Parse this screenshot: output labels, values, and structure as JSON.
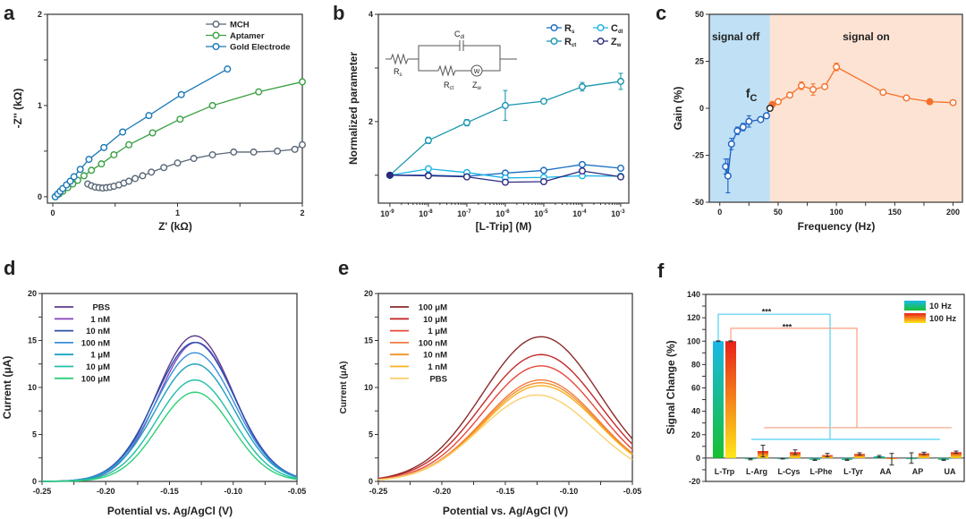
{
  "panels": {
    "a": "a",
    "b": "b",
    "c": "c",
    "d": "d",
    "e": "e",
    "f": "f"
  },
  "chart_data": [
    {
      "id": "a",
      "type": "scatter",
      "xlabel": "Z' (kΩ)",
      "ylabel": "-Z'' (kΩ)",
      "xlim": [
        -0.043,
        2
      ],
      "ylim": [
        -0.07,
        2
      ],
      "x_ticks": [
        0,
        1,
        2
      ],
      "y_ticks": [
        0,
        1,
        2
      ],
      "legend_position": "top-right",
      "series": [
        {
          "name": "MCH",
          "color": "#5a6878",
          "x": [
            0.28,
            0.31,
            0.34,
            0.37,
            0.4,
            0.43,
            0.46,
            0.49,
            0.53,
            0.57,
            0.61,
            0.66,
            0.72,
            0.79,
            0.89,
            1.0,
            1.13,
            1.28,
            1.45,
            1.61,
            1.8,
            1.94,
            2.0
          ],
          "y": [
            0.14,
            0.12,
            0.105,
            0.1,
            0.095,
            0.1,
            0.105,
            0.115,
            0.13,
            0.15,
            0.17,
            0.2,
            0.23,
            0.27,
            0.32,
            0.37,
            0.42,
            0.46,
            0.49,
            0.49,
            0.5,
            0.52,
            0.57
          ]
        },
        {
          "name": "Aptamer",
          "color": "#3aa043",
          "x": [
            0.02,
            0.05,
            0.08,
            0.12,
            0.16,
            0.2,
            0.25,
            0.31,
            0.39,
            0.49,
            0.61,
            0.8,
            1.02,
            1.28,
            1.65,
            2.0
          ],
          "y": [
            0,
            0.03,
            0.06,
            0.1,
            0.14,
            0.18,
            0.23,
            0.29,
            0.36,
            0.46,
            0.57,
            0.7,
            0.85,
            1.0,
            1.15,
            1.26
          ]
        },
        {
          "name": "Gold Electrode",
          "color": "#1a78b8",
          "x": [
            0.02,
            0.04,
            0.06,
            0.08,
            0.11,
            0.14,
            0.17,
            0.22,
            0.29,
            0.41,
            0.56,
            0.77,
            1.03,
            1.4
          ],
          "y": [
            0,
            0.03,
            0.06,
            0.09,
            0.13,
            0.17,
            0.22,
            0.3,
            0.41,
            0.54,
            0.71,
            0.89,
            1.12,
            1.4
          ]
        }
      ]
    },
    {
      "id": "b",
      "type": "line",
      "xlabel": "[L-Trip] (M)",
      "ylabel": "Normalized parameter",
      "x_scale": "log10",
      "x_exponents": [
        -9,
        -8,
        -7,
        -6,
        -5,
        -4,
        -3
      ],
      "tick_base": "10",
      "xlim_exp": [
        -9.3,
        -2.79
      ],
      "ylim": [
        0.48,
        4
      ],
      "y_ticks": [
        2,
        4
      ],
      "legend_position": "top-right",
      "circuit_labels": {
        "cdl": "C",
        "cdl_sub": "dl",
        "rs": "R",
        "rs_sub": "s",
        "rct": "R",
        "rct_sub": "ct",
        "zw": "Z",
        "zw_sub": "w",
        "w": "W"
      },
      "series": [
        {
          "name": "R",
          "sub": "s",
          "color": "#1a6cc0",
          "y": [
            1,
            1.0,
            0.98,
            1.04,
            1.09,
            1.2,
            1.13
          ],
          "err": [
            0,
            0,
            0,
            0,
            0,
            0,
            0
          ]
        },
        {
          "name": "C",
          "sub": "dl",
          "color": "#19b3e6",
          "y": [
            1,
            1.12,
            1.05,
            0.95,
            0.96,
            0.99,
            0.98
          ],
          "err": [
            0,
            0,
            0,
            0,
            0,
            0,
            0
          ]
        },
        {
          "name": "R",
          "sub": "ct",
          "color": "#1996ae",
          "y": [
            1,
            1.65,
            1.98,
            2.3,
            2.38,
            2.65,
            2.75
          ],
          "err": [
            0,
            0.06,
            0.06,
            0.28,
            0,
            0.08,
            0.15
          ]
        },
        {
          "name": "Z",
          "sub": "w",
          "color": "#2a2a80",
          "y": [
            1,
            0.99,
            0.97,
            0.87,
            0.88,
            1.08,
            0.97
          ],
          "err": [
            0,
            0,
            0,
            0,
            0,
            0,
            0
          ]
        }
      ]
    },
    {
      "id": "c",
      "type": "line",
      "xlabel": "Frequency (Hz)",
      "ylabel": "Gain (%)",
      "xlim": [
        -9,
        208
      ],
      "ylim": [
        -50,
        50
      ],
      "x_ticks": [
        0,
        50,
        100,
        150,
        200
      ],
      "y_ticks": [
        -50,
        -25,
        0,
        25,
        50
      ],
      "regions": [
        {
          "label": "signal off",
          "from": -9,
          "to": 43,
          "color": "#bfe0f5"
        },
        {
          "label": "signal on",
          "from": 43,
          "to": 208,
          "color": "#fde3d3"
        }
      ],
      "annotation": {
        "text": "f",
        "sub": "C",
        "x": 43,
        "y": 0
      },
      "series": [
        {
          "name": "signal off",
          "color": "#1a5fc0",
          "x": [
            5,
            7,
            10,
            15,
            20,
            25,
            35,
            40
          ],
          "y": [
            -31,
            -36,
            -19,
            -12,
            -10,
            -7,
            -6,
            -4
          ],
          "err": [
            4,
            9,
            3,
            2,
            2,
            3,
            1,
            1
          ]
        },
        {
          "name": "signal on",
          "color": "#f5702a",
          "x": [
            45,
            50,
            60,
            70,
            80,
            90,
            100,
            140,
            160,
            180,
            200
          ],
          "y": [
            2,
            3.5,
            7,
            12,
            10,
            11.5,
            22,
            8.5,
            5.5,
            3.5,
            3
          ],
          "err": [
            1,
            1,
            1,
            2,
            3,
            1,
            2,
            1,
            1,
            1,
            1
          ]
        }
      ]
    },
    {
      "id": "d",
      "type": "line",
      "xlabel": "Potential vs. Ag/AgCl (V)",
      "ylabel": "Current (μA)",
      "xlim": [
        -0.25,
        -0.05
      ],
      "ylim": [
        0,
        20
      ],
      "x_ticks": [
        "-0.25",
        "-0.20",
        "-0.15",
        "-0.10",
        "-0.05"
      ],
      "y_ticks": [
        0,
        5,
        10,
        15,
        20
      ],
      "legend_position": "top-left",
      "series": [
        {
          "name": "PBS",
          "color": "#5b3a8c",
          "peak_current": 15.5,
          "peak_potential": -0.13,
          "sigma": 0.03
        },
        {
          "name": "1 nM",
          "color": "#8a4bbf",
          "peak_current": 14.8,
          "peak_potential": -0.129,
          "sigma": 0.03
        },
        {
          "name": "10 nM",
          "color": "#2a4fb0",
          "peak_current": 14.8,
          "peak_potential": -0.13,
          "sigma": 0.031
        },
        {
          "name": "100 nM",
          "color": "#3a8fdc",
          "peak_current": 13.7,
          "peak_potential": -0.13,
          "sigma": 0.031
        },
        {
          "name": "1 μM",
          "color": "#1f9fc0",
          "peak_current": 12.5,
          "peak_potential": -0.13,
          "sigma": 0.031
        },
        {
          "name": "10 μM",
          "color": "#1fbfa8",
          "peak_current": 10.8,
          "peak_potential": -0.13,
          "sigma": 0.03
        },
        {
          "name": "100 μM",
          "color": "#2ecf78",
          "peak_current": 9.5,
          "peak_potential": -0.13,
          "sigma": 0.029
        }
      ]
    },
    {
      "id": "e",
      "type": "line",
      "xlabel": "Potential vs. Ag/AgCl (V)",
      "ylabel": "Current (μA)",
      "xlim": [
        -0.25,
        -0.05
      ],
      "ylim": [
        0,
        20
      ],
      "x_ticks": [
        "-0.25",
        "-0.20",
        "-0.15",
        "-0.10",
        "-0.05"
      ],
      "y_ticks": [
        0,
        5,
        10,
        15,
        20
      ],
      "legend_position": "top-left",
      "series": [
        {
          "name": "100 μM",
          "color": "#8b2a2a",
          "peak_current": 15.4,
          "peak_potential": -0.122,
          "sigma": 0.046
        },
        {
          "name": "10 μM",
          "color": "#c42a2a",
          "peak_current": 13.5,
          "peak_potential": -0.122,
          "sigma": 0.046
        },
        {
          "name": "1 μM",
          "color": "#e8483a",
          "peak_current": 12.3,
          "peak_potential": -0.122,
          "sigma": 0.045
        },
        {
          "name": "100 nM",
          "color": "#f07a40",
          "peak_current": 10.8,
          "peak_potential": -0.122,
          "sigma": 0.045
        },
        {
          "name": "10 nM",
          "color": "#f5902a",
          "peak_current": 10.5,
          "peak_potential": -0.122,
          "sigma": 0.045
        },
        {
          "name": "1 nM",
          "color": "#f8b020",
          "peak_current": 10.2,
          "peak_potential": -0.122,
          "sigma": 0.045
        },
        {
          "name": "PBS",
          "color": "#fbd070",
          "peak_current": 9.2,
          "peak_potential": -0.125,
          "sigma": 0.045
        }
      ]
    },
    {
      "id": "f",
      "type": "bar",
      "ylabel": "Signal Change (%)",
      "ylim": [
        -20,
        140
      ],
      "y_ticks": [
        -20,
        0,
        20,
        40,
        60,
        80,
        100,
        120,
        140
      ],
      "categories": [
        "L-Trp",
        "L-Arg",
        "L-Cys",
        "L-Phe",
        "L-Tyr",
        "AA",
        "AP",
        "UA"
      ],
      "legend_position": "top-right",
      "series": [
        {
          "name": "10 Hz",
          "color_top": "#1ab8e8",
          "color_bottom": "#18c030",
          "values": [
            100,
            -1,
            -0.5,
            -1.5,
            -1.5,
            1.5,
            0,
            -1.5
          ],
          "err": [
            0.3,
            0.5,
            0.3,
            0.5,
            0.5,
            0.7,
            4.5,
            0.5
          ]
        },
        {
          "name": "100 Hz",
          "color_top": "#e8201a",
          "color_bottom": "#ffe81a",
          "values": [
            100,
            6,
            5,
            2.5,
            3.5,
            -1,
            4,
            5
          ],
          "err": [
            0.3,
            5,
            2,
            1.5,
            1,
            5,
            1,
            1
          ]
        }
      ],
      "significance": [
        {
          "label": "***",
          "series": "10 Hz",
          "color": "#4fd0f0",
          "top": 123,
          "group_level": 16,
          "label_value": 126
        },
        {
          "label": "***",
          "series": "100 Hz",
          "color": "#f8a080",
          "top": 111,
          "group_level": 26,
          "label_value": 113
        }
      ]
    }
  ]
}
